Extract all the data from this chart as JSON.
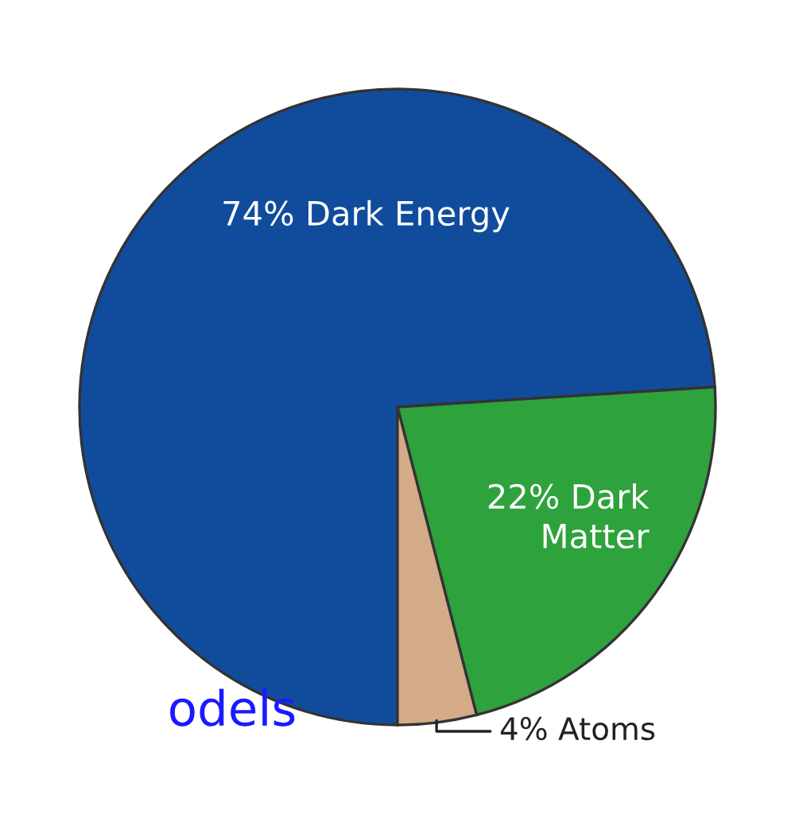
{
  "chart_data": {
    "type": "pie",
    "categories": [
      "Dark Energy",
      "Dark Matter",
      "Atoms"
    ],
    "values": [
      74,
      22,
      4
    ],
    "colors": [
      "#114c9c",
      "#2ea23c",
      "#d4ab88"
    ],
    "value_labels": [
      "74%",
      "22%",
      "4%"
    ],
    "annotations": [
      "odels"
    ]
  }
}
